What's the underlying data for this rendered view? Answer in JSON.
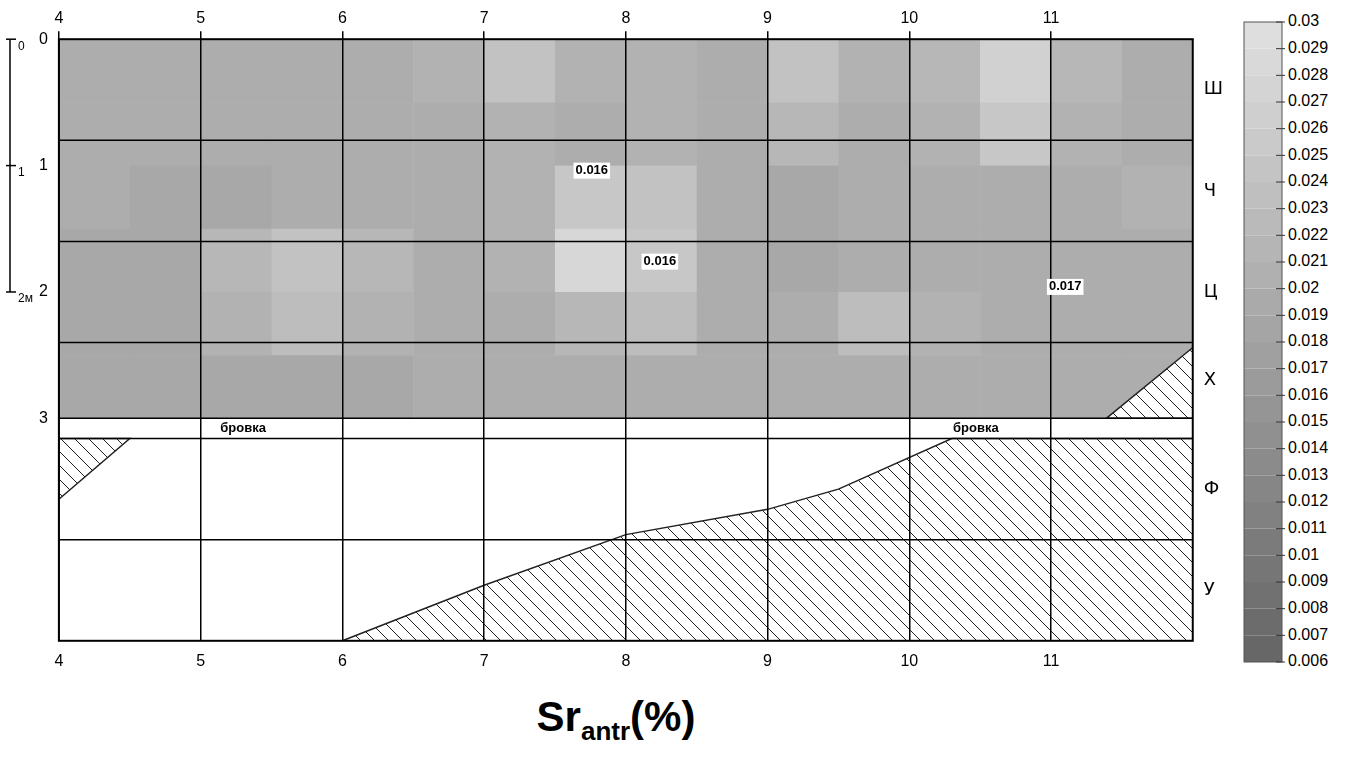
{
  "chart_data": {
    "type": "heatmap",
    "title": {
      "main": "Sr",
      "sub": "antr",
      "after": "(%)"
    },
    "xlim": [
      4,
      12
    ],
    "xticks": [
      4,
      5,
      6,
      7,
      8,
      9,
      10,
      11
    ],
    "ylim": [
      0,
      4.76
    ],
    "yticks": [
      0,
      1,
      2,
      3
    ],
    "y2lim": [
      0,
      4.76
    ],
    "y2ticks": [
      {
        "value": 0.4,
        "label": "Ш"
      },
      {
        "value": 1.2,
        "label": "Ч"
      },
      {
        "value": 2.0,
        "label": "Ц"
      },
      {
        "value": 2.7,
        "label": "Х"
      },
      {
        "value": 3.56,
        "label": "Ф"
      },
      {
        "value": 4.36,
        "label": "У"
      }
    ],
    "grid": true,
    "row_bounds": [
      0.8,
      1.6,
      2.4,
      3,
      3.16,
      3.96
    ],
    "cells": {
      "x": [
        4.25,
        4.75,
        5.25,
        5.75,
        6.25,
        6.75,
        7.25,
        7.75,
        8.25,
        8.75,
        9.25,
        9.75,
        10.25,
        10.75,
        11.25,
        11.75
      ],
      "y": [
        0.25,
        0.75,
        1.25,
        1.75,
        2.25,
        2.75
      ],
      "values": [
        [
          0.02,
          0.02,
          0.02,
          0.02,
          0.02,
          0.021,
          0.024,
          0.021,
          0.021,
          0.02,
          0.024,
          0.021,
          0.022,
          0.027,
          0.022,
          0.02
        ],
        [
          0.02,
          0.02,
          0.02,
          0.02,
          0.02,
          0.02,
          0.021,
          0.02,
          0.021,
          0.02,
          0.022,
          0.02,
          0.021,
          0.025,
          0.021,
          0.02
        ],
        [
          0.02,
          0.019,
          0.019,
          0.02,
          0.02,
          0.02,
          0.021,
          0.025,
          0.024,
          0.02,
          0.019,
          0.02,
          0.02,
          0.02,
          0.02,
          0.021
        ],
        [
          0.019,
          0.019,
          0.022,
          0.024,
          0.022,
          0.02,
          0.021,
          0.028,
          0.025,
          0.02,
          0.019,
          0.02,
          0.02,
          0.02,
          0.02,
          0.02
        ],
        [
          0.019,
          0.019,
          0.021,
          0.023,
          0.021,
          0.02,
          0.02,
          0.022,
          0.023,
          0.02,
          0.02,
          0.023,
          0.021,
          0.02,
          0.02,
          0.02
        ],
        [
          0.019,
          0.019,
          0.019,
          0.019,
          0.019,
          0.02,
          0.02,
          0.02,
          0.02,
          0.02,
          0.02,
          0.02,
          0.02,
          0.02,
          0.02,
          0.02
        ]
      ]
    },
    "colorbar": {
      "range": [
        0.006,
        0.03
      ],
      "ticks": [
        0.03,
        0.029,
        0.028,
        0.027,
        0.026,
        0.025,
        0.024,
        0.023,
        0.022,
        0.021,
        0.02,
        0.019,
        0.018,
        0.017,
        0.016,
        0.015,
        0.014,
        0.013,
        0.012,
        0.011,
        0.01,
        0.009,
        0.008,
        0.007,
        0.006
      ]
    },
    "annotations": [
      {
        "text": "бровка",
        "x": 5.3,
        "y": 3.08
      },
      {
        "text": "бровка",
        "x": 10.47,
        "y": 3.08
      },
      {
        "text": "0.016",
        "x": 7.76,
        "y": 1.04
      },
      {
        "text": "0.016",
        "x": 8.24,
        "y": 1.76
      },
      {
        "text": "0.017",
        "x": 11.1,
        "y": 1.96
      }
    ],
    "scale_bar": {
      "ticks": [
        0,
        1,
        {
          "value": 2,
          "label": "2м"
        }
      ]
    },
    "zones": [
      {
        "fill": "hatch",
        "points": [
          [
            6,
            4.76
          ],
          [
            7,
            4.32
          ],
          [
            8,
            3.92
          ],
          [
            9,
            3.72
          ],
          [
            9.5,
            3.56
          ],
          [
            10.3,
            3.16
          ],
          [
            12,
            3.16
          ],
          [
            12,
            4.76
          ]
        ]
      },
      {
        "fill": "hatch",
        "points": [
          [
            4,
            3.64
          ],
          [
            4.5,
            3.16
          ],
          [
            4,
            3.16
          ]
        ]
      },
      {
        "fill": "hatch",
        "points": [
          [
            11.39,
            3
          ],
          [
            12,
            2.44
          ],
          [
            12,
            3
          ]
        ]
      }
    ]
  }
}
